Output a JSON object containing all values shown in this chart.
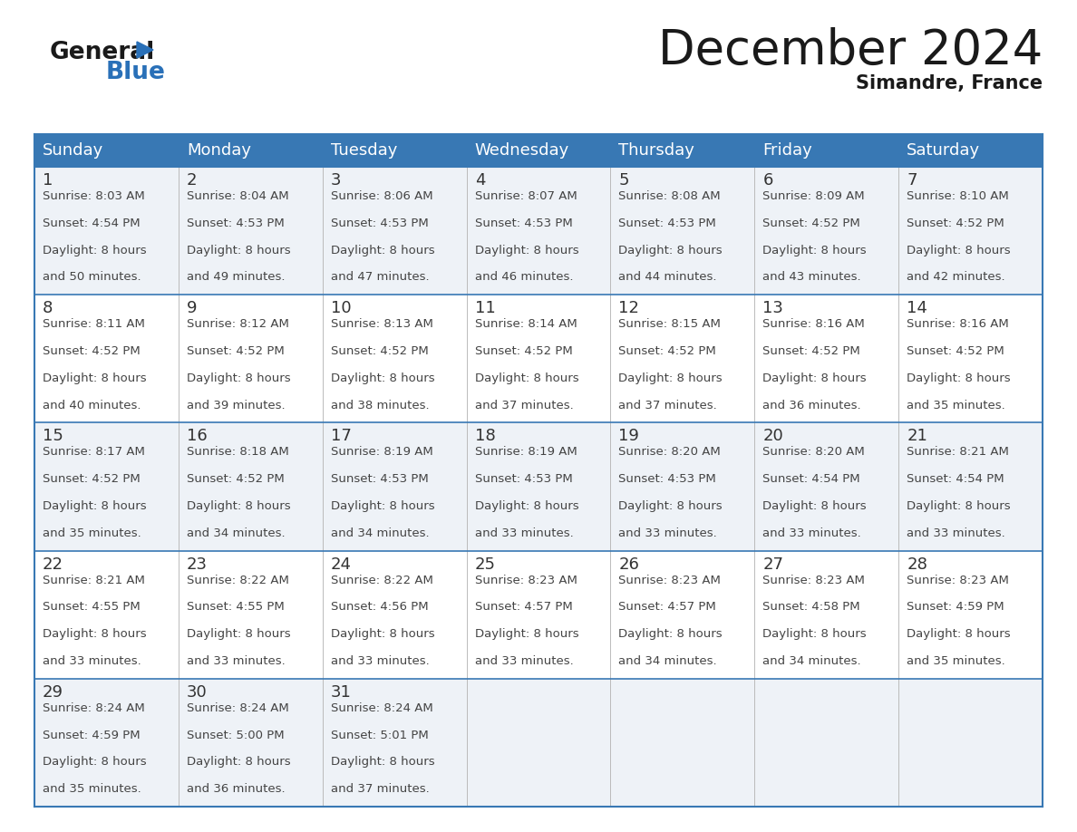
{
  "title": "December 2024",
  "subtitle": "Simandre, France",
  "header_color": "#3878b4",
  "header_text_color": "#ffffff",
  "row_bg_colors": [
    "#eef2f7",
    "#ffffff",
    "#eef2f7",
    "#ffffff",
    "#eef2f7"
  ],
  "day_names": [
    "Sunday",
    "Monday",
    "Tuesday",
    "Wednesday",
    "Thursday",
    "Friday",
    "Saturday"
  ],
  "calendar": [
    [
      {
        "day": 1,
        "sunrise": "8:03 AM",
        "sunset": "4:54 PM",
        "daylight": "8 hours and 50 minutes"
      },
      {
        "day": 2,
        "sunrise": "8:04 AM",
        "sunset": "4:53 PM",
        "daylight": "8 hours and 49 minutes"
      },
      {
        "day": 3,
        "sunrise": "8:06 AM",
        "sunset": "4:53 PM",
        "daylight": "8 hours and 47 minutes"
      },
      {
        "day": 4,
        "sunrise": "8:07 AM",
        "sunset": "4:53 PM",
        "daylight": "8 hours and 46 minutes"
      },
      {
        "day": 5,
        "sunrise": "8:08 AM",
        "sunset": "4:53 PM",
        "daylight": "8 hours and 44 minutes"
      },
      {
        "day": 6,
        "sunrise": "8:09 AM",
        "sunset": "4:52 PM",
        "daylight": "8 hours and 43 minutes"
      },
      {
        "day": 7,
        "sunrise": "8:10 AM",
        "sunset": "4:52 PM",
        "daylight": "8 hours and 42 minutes"
      }
    ],
    [
      {
        "day": 8,
        "sunrise": "8:11 AM",
        "sunset": "4:52 PM",
        "daylight": "8 hours and 40 minutes"
      },
      {
        "day": 9,
        "sunrise": "8:12 AM",
        "sunset": "4:52 PM",
        "daylight": "8 hours and 39 minutes"
      },
      {
        "day": 10,
        "sunrise": "8:13 AM",
        "sunset": "4:52 PM",
        "daylight": "8 hours and 38 minutes"
      },
      {
        "day": 11,
        "sunrise": "8:14 AM",
        "sunset": "4:52 PM",
        "daylight": "8 hours and 37 minutes"
      },
      {
        "day": 12,
        "sunrise": "8:15 AM",
        "sunset": "4:52 PM",
        "daylight": "8 hours and 37 minutes"
      },
      {
        "day": 13,
        "sunrise": "8:16 AM",
        "sunset": "4:52 PM",
        "daylight": "8 hours and 36 minutes"
      },
      {
        "day": 14,
        "sunrise": "8:16 AM",
        "sunset": "4:52 PM",
        "daylight": "8 hours and 35 minutes"
      }
    ],
    [
      {
        "day": 15,
        "sunrise": "8:17 AM",
        "sunset": "4:52 PM",
        "daylight": "8 hours and 35 minutes"
      },
      {
        "day": 16,
        "sunrise": "8:18 AM",
        "sunset": "4:52 PM",
        "daylight": "8 hours and 34 minutes"
      },
      {
        "day": 17,
        "sunrise": "8:19 AM",
        "sunset": "4:53 PM",
        "daylight": "8 hours and 34 minutes"
      },
      {
        "day": 18,
        "sunrise": "8:19 AM",
        "sunset": "4:53 PM",
        "daylight": "8 hours and 33 minutes"
      },
      {
        "day": 19,
        "sunrise": "8:20 AM",
        "sunset": "4:53 PM",
        "daylight": "8 hours and 33 minutes"
      },
      {
        "day": 20,
        "sunrise": "8:20 AM",
        "sunset": "4:54 PM",
        "daylight": "8 hours and 33 minutes"
      },
      {
        "day": 21,
        "sunrise": "8:21 AM",
        "sunset": "4:54 PM",
        "daylight": "8 hours and 33 minutes"
      }
    ],
    [
      {
        "day": 22,
        "sunrise": "8:21 AM",
        "sunset": "4:55 PM",
        "daylight": "8 hours and 33 minutes"
      },
      {
        "day": 23,
        "sunrise": "8:22 AM",
        "sunset": "4:55 PM",
        "daylight": "8 hours and 33 minutes"
      },
      {
        "day": 24,
        "sunrise": "8:22 AM",
        "sunset": "4:56 PM",
        "daylight": "8 hours and 33 minutes"
      },
      {
        "day": 25,
        "sunrise": "8:23 AM",
        "sunset": "4:57 PM",
        "daylight": "8 hours and 33 minutes"
      },
      {
        "day": 26,
        "sunrise": "8:23 AM",
        "sunset": "4:57 PM",
        "daylight": "8 hours and 34 minutes"
      },
      {
        "day": 27,
        "sunrise": "8:23 AM",
        "sunset": "4:58 PM",
        "daylight": "8 hours and 34 minutes"
      },
      {
        "day": 28,
        "sunrise": "8:23 AM",
        "sunset": "4:59 PM",
        "daylight": "8 hours and 35 minutes"
      }
    ],
    [
      {
        "day": 29,
        "sunrise": "8:24 AM",
        "sunset": "4:59 PM",
        "daylight": "8 hours and 35 minutes"
      },
      {
        "day": 30,
        "sunrise": "8:24 AM",
        "sunset": "5:00 PM",
        "daylight": "8 hours and 36 minutes"
      },
      {
        "day": 31,
        "sunrise": "8:24 AM",
        "sunset": "5:01 PM",
        "daylight": "8 hours and 37 minutes"
      },
      null,
      null,
      null,
      null
    ]
  ],
  "logo_blue_color": "#2970b8",
  "border_color": "#3878b4",
  "cell_text_color": "#444444",
  "day_num_color": "#333333",
  "title_fontsize": 38,
  "subtitle_fontsize": 15,
  "header_fontsize": 13,
  "day_num_fontsize": 13,
  "cell_fontsize": 9.5
}
